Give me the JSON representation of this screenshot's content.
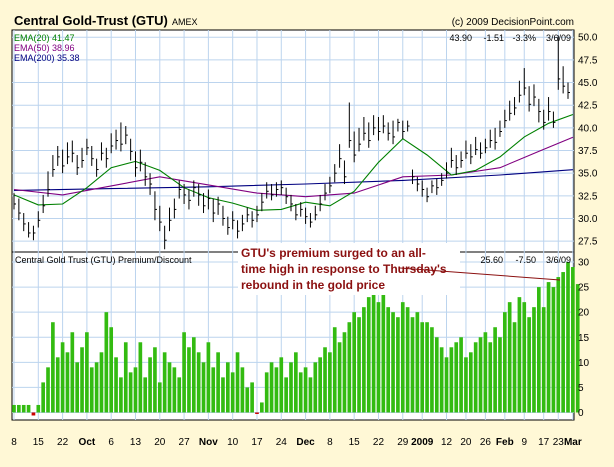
{
  "header": {
    "title": "Central Gold-Trust (GTU)",
    "exchange": "AMEX",
    "copyright": "(c) 2009 DecisionPoint.com",
    "last_quote": [
      "43.90",
      "-1.51",
      "-3.3%",
      "3/6/09"
    ]
  },
  "colors": {
    "background": "#fff8d6",
    "panel": "#ffffff",
    "grid": "#bcd4ee",
    "price_bar": "#000000",
    "ema20": "#008000",
    "ema50": "#800080",
    "ema200": "#000080",
    "premium_bar": "#33bb11",
    "premium_negative": "#cc0000",
    "annotation": "#8b1010"
  },
  "legend": [
    {
      "label": "EMA(20) 41.47",
      "color": "#008000"
    },
    {
      "label": "EMA(50) 38.96",
      "color": "#800080"
    },
    {
      "label": "EMA(200) 35.38",
      "color": "#000080"
    }
  ],
  "lower_panel": {
    "title": "Central Gold Trust (GTU) Premium/Discount",
    "last_values": [
      "25.60",
      "-7.50",
      "3/6/09"
    ]
  },
  "annotation": {
    "lines": [
      "GTU's premium surged to an all-",
      "time high in response to Thursday's",
      "rebound in the gold price"
    ]
  },
  "chart_data": [
    {
      "type": "bar",
      "subtype": "ohlc-with-ema",
      "yticks": [
        "50.0",
        "47.5",
        "45.0",
        "42.5",
        "40.0",
        "37.5",
        "35.0",
        "32.5",
        "30.0",
        "27.5"
      ],
      "ylim": [
        26.3,
        50.8
      ],
      "price_bars": [
        [
          31.6,
          32.8,
          31.0
        ],
        [
          30.6,
          32.2,
          29.8
        ],
        [
          29.4,
          30.6,
          28.6
        ],
        [
          28.4,
          29.6,
          27.9
        ],
        [
          28.4,
          29.2,
          27.6
        ],
        [
          29.8,
          30.8,
          29.0
        ],
        [
          31.4,
          32.6,
          30.6
        ],
        [
          33.2,
          35.2,
          32.4
        ],
        [
          35.4,
          37.0,
          34.6
        ],
        [
          36.8,
          38.0,
          35.8
        ],
        [
          35.8,
          37.6,
          35.0
        ],
        [
          36.8,
          38.4,
          36.0
        ],
        [
          37.2,
          38.6,
          36.2
        ],
        [
          35.6,
          37.0,
          34.8
        ],
        [
          36.4,
          37.8,
          35.6
        ],
        [
          37.8,
          38.8,
          37.0
        ],
        [
          36.6,
          38.0,
          35.8
        ],
        [
          35.4,
          36.6,
          34.6
        ],
        [
          37.2,
          38.4,
          36.4
        ],
        [
          36.6,
          37.8,
          35.6
        ],
        [
          38.0,
          39.4,
          37.2
        ],
        [
          38.6,
          39.8,
          37.6
        ],
        [
          38.2,
          40.6,
          37.4
        ],
        [
          39.2,
          40.2,
          38.2
        ],
        [
          37.4,
          38.8,
          36.4
        ],
        [
          35.6,
          37.4,
          34.6
        ],
        [
          36.2,
          37.6,
          35.2
        ],
        [
          34.6,
          36.2,
          33.6
        ],
        [
          33.8,
          35.0,
          32.6
        ],
        [
          31.0,
          33.0,
          29.8
        ],
        [
          29.6,
          31.4,
          28.6
        ],
        [
          27.6,
          29.2,
          26.6
        ],
        [
          29.8,
          31.2,
          28.6
        ],
        [
          31.0,
          32.2,
          30.0
        ],
        [
          33.2,
          34.2,
          32.2
        ],
        [
          32.6,
          33.8,
          31.6
        ],
        [
          32.0,
          33.2,
          31.0
        ],
        [
          33.4,
          34.2,
          32.4
        ],
        [
          32.6,
          33.8,
          31.4
        ],
        [
          31.4,
          32.8,
          30.6
        ],
        [
          32.2,
          33.2,
          31.0
        ],
        [
          30.6,
          32.2,
          29.6
        ],
        [
          31.6,
          32.4,
          30.4
        ],
        [
          30.0,
          31.4,
          29.2
        ],
        [
          29.0,
          30.2,
          28.2
        ],
        [
          29.8,
          30.8,
          28.8
        ],
        [
          28.6,
          29.8,
          27.8
        ],
        [
          29.4,
          30.4,
          28.6
        ],
        [
          30.4,
          31.2,
          29.6
        ],
        [
          29.8,
          30.8,
          29.0
        ],
        [
          30.4,
          31.4,
          29.6
        ],
        [
          31.8,
          32.8,
          30.8
        ],
        [
          33.0,
          34.0,
          32.2
        ],
        [
          32.6,
          33.8,
          32.0
        ],
        [
          33.2,
          34.0,
          32.4
        ],
        [
          33.4,
          34.2,
          32.6
        ],
        [
          32.4,
          33.4,
          31.6
        ],
        [
          31.6,
          32.6,
          30.8
        ],
        [
          30.4,
          31.6,
          29.8
        ],
        [
          31.0,
          31.8,
          30.2
        ],
        [
          30.2,
          31.2,
          29.4
        ],
        [
          29.6,
          30.6,
          29.0
        ],
        [
          30.4,
          31.4,
          29.8
        ],
        [
          31.6,
          32.6,
          30.8
        ],
        [
          32.8,
          33.8,
          32.0
        ],
        [
          33.6,
          34.6,
          32.8
        ],
        [
          35.0,
          36.0,
          34.0
        ],
        [
          36.6,
          38.2,
          35.6
        ],
        [
          34.6,
          36.4,
          33.8
        ],
        [
          38.6,
          42.8,
          37.8
        ],
        [
          37.0,
          39.6,
          36.2
        ],
        [
          38.2,
          40.0,
          37.4
        ],
        [
          39.4,
          41.2,
          38.6
        ],
        [
          38.6,
          40.6,
          37.8
        ],
        [
          40.0,
          41.4,
          39.2
        ],
        [
          39.6,
          41.2,
          38.6
        ],
        [
          40.2,
          41.4,
          39.4
        ],
        [
          39.4,
          40.6,
          38.6
        ],
        [
          39.0,
          40.8,
          38.2
        ],
        [
          40.6,
          41.0,
          39.6
        ],
        [
          39.6,
          40.8,
          38.8
        ],
        [
          40.2,
          40.8,
          39.6
        ],
        [
          34.6,
          35.4,
          33.8
        ],
        [
          33.8,
          34.6,
          33.0
        ],
        [
          33.2,
          34.2,
          32.4
        ],
        [
          32.4,
          33.4,
          31.8
        ],
        [
          33.6,
          34.2,
          32.8
        ],
        [
          33.4,
          34.4,
          32.6
        ],
        [
          34.2,
          35.0,
          33.6
        ],
        [
          35.0,
          36.2,
          34.4
        ],
        [
          36.4,
          37.8,
          35.6
        ],
        [
          35.6,
          37.0,
          34.8
        ],
        [
          36.4,
          37.4,
          35.6
        ],
        [
          37.2,
          38.6,
          36.6
        ],
        [
          36.8,
          38.2,
          36.0
        ],
        [
          37.6,
          39.0,
          37.0
        ],
        [
          37.2,
          38.4,
          36.6
        ],
        [
          37.8,
          38.8,
          37.2
        ],
        [
          38.6,
          39.8,
          37.8
        ],
        [
          38.4,
          40.0,
          37.6
        ],
        [
          39.6,
          40.8,
          39.0
        ],
        [
          40.8,
          42.0,
          40.0
        ],
        [
          41.6,
          43.0,
          40.8
        ],
        [
          42.2,
          43.4,
          41.4
        ],
        [
          43.6,
          45.2,
          42.8
        ],
        [
          44.4,
          46.6,
          43.6
        ],
        [
          42.6,
          44.6,
          41.8
        ],
        [
          43.4,
          44.8,
          42.4
        ],
        [
          41.8,
          43.2,
          40.6
        ],
        [
          40.6,
          42.0,
          39.8
        ],
        [
          41.8,
          43.4,
          40.8
        ],
        [
          40.6,
          41.8,
          40.0
        ],
        [
          45.4,
          50.2,
          44.2
        ],
        [
          44.6,
          46.8,
          43.8
        ],
        [
          43.9,
          45.0,
          43.2
        ]
      ],
      "ema20": [
        [
          0,
          32.6
        ],
        [
          5,
          31.5
        ],
        [
          10,
          31.6
        ],
        [
          15,
          33.4
        ],
        [
          20,
          35.6
        ],
        [
          25,
          36.3
        ],
        [
          30,
          35.3
        ],
        [
          35,
          33.4
        ],
        [
          40,
          32.3
        ],
        [
          45,
          31.7
        ],
        [
          50,
          30.9
        ],
        [
          55,
          31.0
        ],
        [
          60,
          31.8
        ],
        [
          65,
          31.4
        ],
        [
          70,
          33.0
        ],
        [
          75,
          36.2
        ],
        [
          80,
          38.8
        ],
        [
          85,
          37.0
        ],
        [
          90,
          34.8
        ],
        [
          95,
          35.3
        ],
        [
          100,
          36.8
        ],
        [
          105,
          39.0
        ],
        [
          110,
          40.5
        ],
        [
          115,
          41.47
        ]
      ],
      "ema50": [
        [
          0,
          33.2
        ],
        [
          10,
          32.6
        ],
        [
          20,
          33.6
        ],
        [
          30,
          34.6
        ],
        [
          40,
          33.7
        ],
        [
          50,
          32.8
        ],
        [
          60,
          32.4
        ],
        [
          70,
          32.8
        ],
        [
          80,
          34.6
        ],
        [
          90,
          34.8
        ],
        [
          100,
          35.6
        ],
        [
          108,
          37.4
        ],
        [
          115,
          38.96
        ]
      ],
      "ema200": [
        [
          0,
          33.1
        ],
        [
          20,
          33.3
        ],
        [
          40,
          33.5
        ],
        [
          60,
          33.8
        ],
        [
          80,
          34.2
        ],
        [
          100,
          34.8
        ],
        [
          115,
          35.38
        ]
      ]
    },
    {
      "type": "bar",
      "subtype": "premium-discount",
      "yticks": [
        "30",
        "25",
        "20",
        "15",
        "10",
        "5",
        "0"
      ],
      "ylim": [
        -1.5,
        32
      ],
      "values": [
        1.5,
        1.5,
        1.5,
        1.5,
        -0.6,
        1.5,
        6,
        9,
        18,
        11,
        14,
        12,
        16,
        10,
        13,
        16,
        9,
        10,
        12,
        20,
        17,
        11,
        7,
        14,
        8,
        9,
        14,
        7,
        11,
        13,
        6,
        12,
        10,
        9,
        7,
        16,
        13,
        15,
        12,
        10,
        14,
        9,
        12,
        7,
        10,
        8,
        12,
        9,
        5,
        6,
        -0.3,
        2,
        8,
        10,
        9,
        11,
        7,
        10,
        12,
        8,
        9,
        7,
        10,
        11,
        13,
        12,
        17,
        14,
        16,
        18,
        20,
        19,
        21,
        23,
        24,
        22,
        24,
        21,
        20,
        19,
        22,
        21,
        19,
        20,
        18,
        18,
        17,
        15,
        13,
        11,
        13,
        14,
        15,
        11,
        12,
        14,
        15,
        16,
        14,
        17,
        15,
        20,
        22,
        18,
        23,
        22,
        19,
        21,
        25,
        21,
        26,
        25,
        27,
        28,
        30,
        29,
        25.6
      ]
    }
  ],
  "x_axis": {
    "labels": [
      {
        "text": "8",
        "bar": 0,
        "bold": false
      },
      {
        "text": "15",
        "bar": 5,
        "bold": false
      },
      {
        "text": "22",
        "bar": 10,
        "bold": false
      },
      {
        "text": "Oct",
        "bar": 15,
        "bold": true
      },
      {
        "text": "6",
        "bar": 20,
        "bold": false
      },
      {
        "text": "13",
        "bar": 25,
        "bold": false
      },
      {
        "text": "20",
        "bar": 30,
        "bold": false
      },
      {
        "text": "27",
        "bar": 35,
        "bold": false
      },
      {
        "text": "Nov",
        "bar": 40,
        "bold": true
      },
      {
        "text": "10",
        "bar": 45,
        "bold": false
      },
      {
        "text": "17",
        "bar": 50,
        "bold": false
      },
      {
        "text": "24",
        "bar": 55,
        "bold": false
      },
      {
        "text": "Dec",
        "bar": 60,
        "bold": true
      },
      {
        "text": "8",
        "bar": 65,
        "bold": false
      },
      {
        "text": "15",
        "bar": 70,
        "bold": false
      },
      {
        "text": "22",
        "bar": 75,
        "bold": false
      },
      {
        "text": "29",
        "bar": 80,
        "bold": false
      },
      {
        "text": "2009",
        "bar": 84,
        "bold": true
      },
      {
        "text": "12",
        "bar": 89,
        "bold": false
      },
      {
        "text": "20",
        "bar": 93,
        "bold": false
      },
      {
        "text": "26",
        "bar": 97,
        "bold": false
      },
      {
        "text": "Feb",
        "bar": 101,
        "bold": true
      },
      {
        "text": "9",
        "bar": 105,
        "bold": false
      },
      {
        "text": "17",
        "bar": 109,
        "bold": false
      },
      {
        "text": "23",
        "bar": 112,
        "bold": false
      },
      {
        "text": "Mar",
        "bar": 115,
        "bold": true
      }
    ]
  }
}
